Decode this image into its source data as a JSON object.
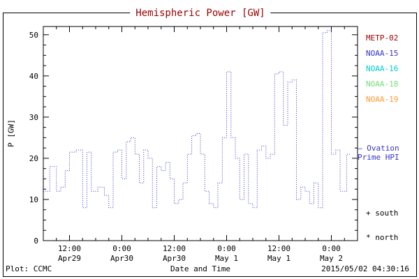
{
  "title": "Hemispheric Power [GW]",
  "colors": {
    "title": "#990000",
    "line": "#3333cc",
    "axis": "#000000",
    "ovation": "#3333cc"
  },
  "legend": [
    {
      "label": "METP-02",
      "color": "#990000"
    },
    {
      "label": "NOAA-15",
      "color": "#3333cc"
    },
    {
      "label": "NOAA-16",
      "color": "#00cccc"
    },
    {
      "label": "NOAA-18",
      "color": "#77dd77"
    },
    {
      "label": "NOAA-19",
      "color": "#ff9933"
    }
  ],
  "ovation": {
    "line1": "– Ovation",
    "line2": "Prime HPI"
  },
  "markers": {
    "south_symbol": "+",
    "south_label": "south",
    "north_symbol": "*",
    "north_label": "north"
  },
  "footer": {
    "left": "Plot: CCMC",
    "center": "Date and Time",
    "right": "2015/05/02 04:30:16"
  },
  "chart_data": {
    "type": "line",
    "title": "Hemispheric Power [GW]",
    "ylabel": "P [GW]",
    "xlabel": "Date and Time",
    "ylim": [
      0,
      52
    ],
    "y_ticks": [
      0,
      10,
      20,
      30,
      40,
      50
    ],
    "y_minor_step": 2.5,
    "xlim_hours": [
      0,
      72
    ],
    "x_minor_step_hours": 3,
    "x_ticks": [
      {
        "hour": 6,
        "label": "12:00",
        "sub": "Apr29"
      },
      {
        "hour": 18,
        "label": "0:00",
        "sub": "Apr30"
      },
      {
        "hour": 30,
        "label": "12:00",
        "sub": "Apr30"
      },
      {
        "hour": 42,
        "label": "0:00",
        "sub": "May 1"
      },
      {
        "hour": 54,
        "label": "12:00",
        "sub": "May 1"
      },
      {
        "hour": 66,
        "label": "0:00",
        "sub": "May 2"
      }
    ],
    "grid": false,
    "legend_position": "right",
    "series": [
      {
        "name": "NOAA-15 Ovation Prime HPI",
        "color": "#3333cc",
        "style": "dotted-step",
        "x": [
          0,
          1.5,
          3,
          4,
          5,
          6,
          7.5,
          9,
          10,
          11,
          12.5,
          14,
          15,
          16,
          17,
          18,
          19,
          20,
          21,
          22,
          23,
          24,
          25,
          26,
          27,
          28,
          29,
          30,
          31,
          32,
          33,
          34,
          35,
          36,
          37,
          38,
          39,
          40,
          41,
          42,
          43,
          44,
          45,
          46,
          47,
          48,
          49,
          50,
          51,
          52,
          53,
          54,
          55,
          56,
          57,
          58,
          59,
          60,
          61,
          62,
          63,
          64,
          65,
          66,
          67,
          68,
          69.5
        ],
        "y": [
          12,
          18,
          12,
          13,
          17,
          21.5,
          22,
          8,
          21.5,
          12,
          13,
          11,
          8,
          21.5,
          22,
          15,
          24,
          25,
          21,
          14,
          22,
          20,
          8,
          18,
          17,
          19,
          15,
          9,
          10,
          14,
          21,
          25.5,
          26,
          21,
          12,
          9,
          8,
          14,
          25,
          41,
          25,
          20,
          10,
          21,
          9,
          8,
          22,
          23,
          20,
          21,
          40.5,
          41,
          28,
          38.5,
          39,
          10,
          13,
          12,
          9,
          14,
          8,
          50.5,
          51,
          21,
          22,
          12,
          21
        ]
      }
    ]
  }
}
